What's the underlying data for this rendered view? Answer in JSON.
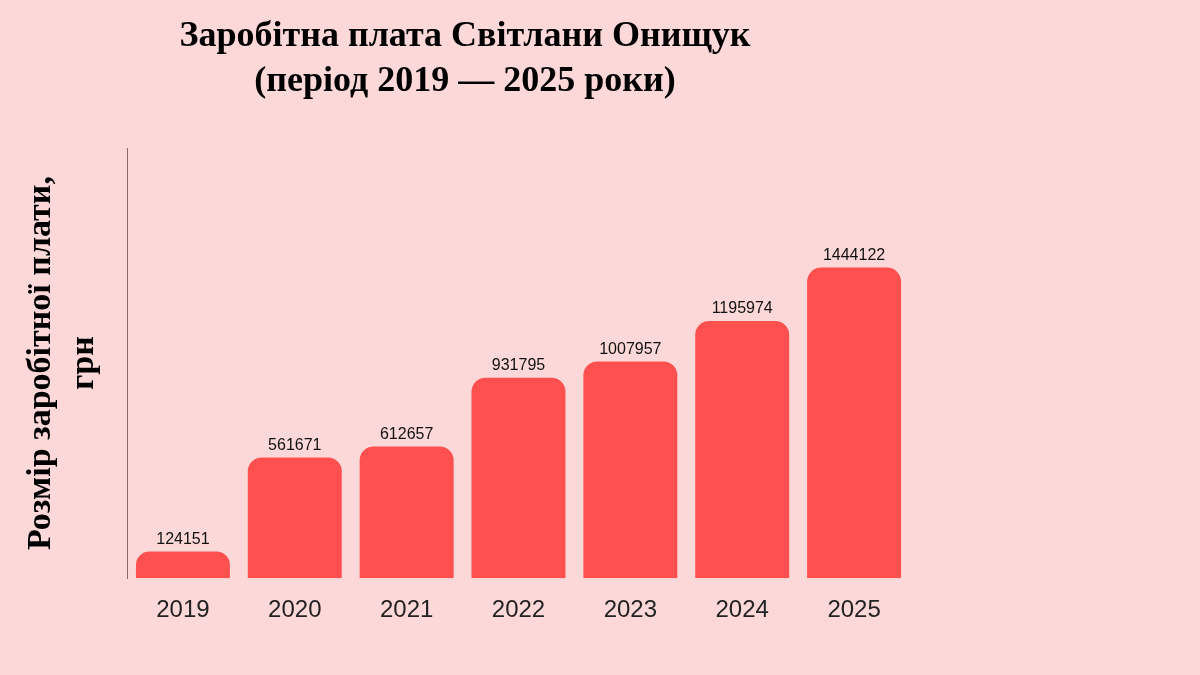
{
  "chart_data": {
    "type": "bar",
    "title": "Заробітна плата Світлани Онищук",
    "subtitle": "(період 2019 — 2025 роки)",
    "y_label": "Розмір заробітної плати, грн",
    "categories": [
      "2019",
      "2020",
      "2021",
      "2022",
      "2023",
      "2024",
      "2025"
    ],
    "values": [
      124151,
      561671,
      612657,
      931795,
      1007957,
      1195974,
      1444122
    ],
    "color": "#ff5050",
    "ylim": [
      0,
      2000000
    ],
    "grid": false,
    "tick_labels": "x",
    "data_labels": true
  }
}
